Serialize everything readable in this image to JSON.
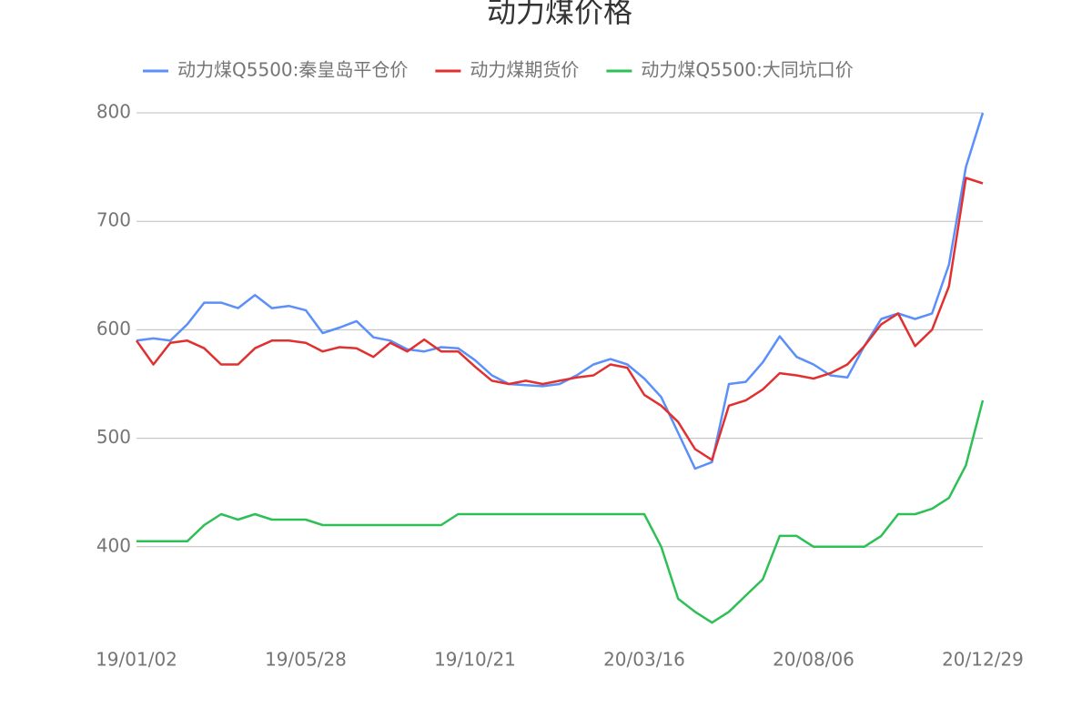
{
  "chart_data": {
    "type": "line",
    "title": "动力煤价格",
    "categories": [
      "19/01/02",
      null,
      null,
      null,
      null,
      null,
      null,
      null,
      null,
      null,
      "19/05/28",
      null,
      null,
      null,
      null,
      null,
      null,
      null,
      null,
      null,
      "19/10/21",
      null,
      null,
      null,
      null,
      null,
      null,
      null,
      null,
      null,
      "20/03/16",
      null,
      null,
      null,
      null,
      null,
      null,
      null,
      null,
      null,
      "20/08/06",
      null,
      null,
      null,
      null,
      null,
      null,
      null,
      null,
      null,
      "20/12/29"
    ],
    "series": [
      {
        "name": "动力煤Q5500:秦皇岛平仓价",
        "color": "#5b8ff9",
        "values": [
          590,
          592,
          590,
          605,
          625,
          625,
          620,
          632,
          620,
          622,
          618,
          597,
          602,
          608,
          593,
          590,
          582,
          580,
          584,
          583,
          572,
          558,
          550,
          549,
          548,
          550,
          558,
          568,
          573,
          568,
          555,
          538,
          505,
          472,
          478,
          550,
          552,
          570,
          594,
          575,
          568,
          558,
          556,
          585,
          610,
          615,
          610,
          615,
          660,
          750,
          800
        ]
      },
      {
        "name": "动力煤期货价",
        "color": "#e03030",
        "values": [
          590,
          568,
          588,
          590,
          583,
          568,
          568,
          583,
          590,
          590,
          588,
          580,
          584,
          583,
          575,
          588,
          580,
          591,
          580,
          580,
          566,
          553,
          550,
          553,
          550,
          553,
          556,
          558,
          568,
          565,
          540,
          530,
          515,
          490,
          480,
          530,
          535,
          545,
          560,
          558,
          555,
          560,
          568,
          585,
          605,
          615,
          585,
          600,
          640,
          740,
          735
        ]
      },
      {
        "name": "动力煤Q5500:大同坑口价",
        "color": "#2fbf57",
        "values": [
          405,
          405,
          405,
          405,
          420,
          430,
          425,
          430,
          425,
          425,
          425,
          420,
          420,
          420,
          420,
          420,
          420,
          420,
          420,
          430,
          430,
          430,
          430,
          430,
          430,
          430,
          430,
          430,
          430,
          430,
          430,
          400,
          352,
          340,
          330,
          340,
          355,
          370,
          410,
          410,
          400,
          400,
          400,
          400,
          410,
          430,
          430,
          435,
          445,
          475,
          535
        ]
      }
    ],
    "ylim": [
      300,
      800
    ],
    "yticks": [
      400,
      500,
      600,
      700,
      800
    ],
    "grid": true
  }
}
